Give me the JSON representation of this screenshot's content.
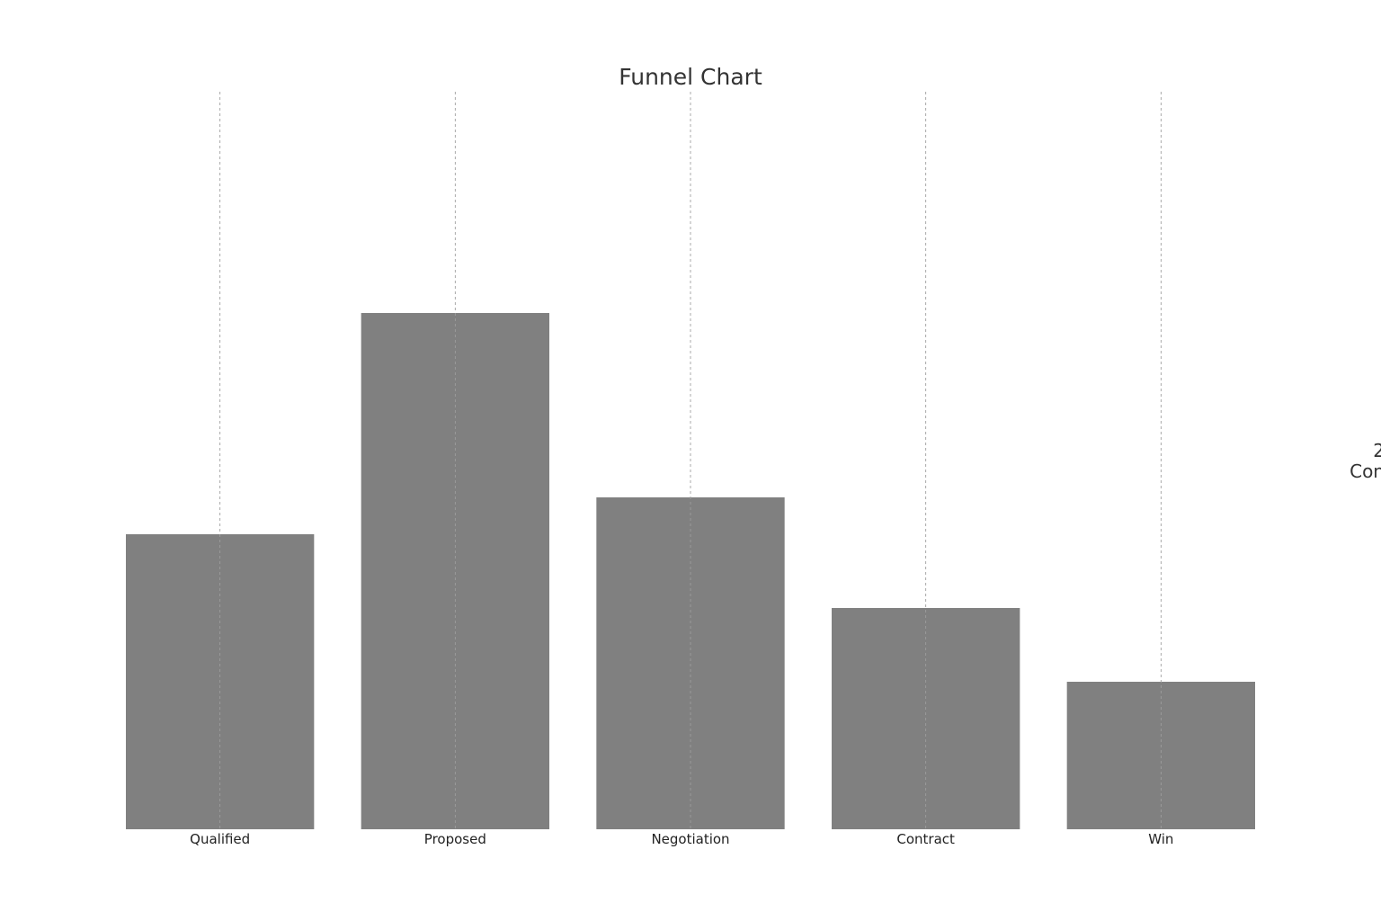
{
  "chart_data": {
    "type": "bar",
    "title": "Funnel Chart",
    "categories": [
      "Qualified",
      "Proposed",
      "Negotiation",
      "Contract",
      "Win"
    ],
    "values": [
      40,
      70,
      45,
      30,
      20
    ],
    "xlabel": "",
    "ylabel": "",
    "ylim": [
      0,
      100
    ],
    "grid": "vertical-dashed",
    "bar_color": "#808080",
    "grid_color": "#cccccc",
    "side_label_lines": [
      "2",
      "Con"
    ]
  }
}
